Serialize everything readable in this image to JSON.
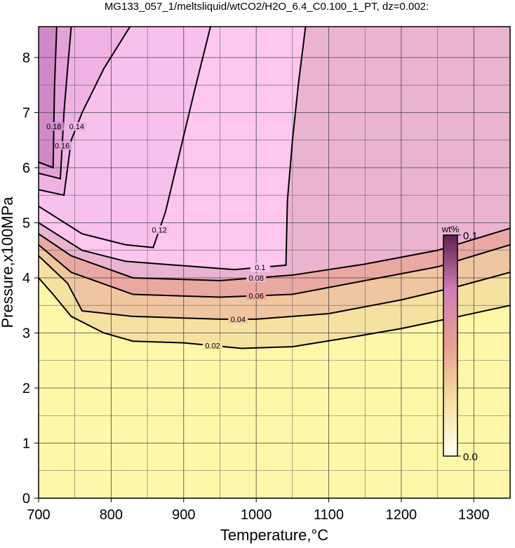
{
  "chart_data": {
    "type": "contour",
    "title": "MG133_057_1/meltsliquid/wtCO2/H2O_6.4_C0.100_1_PT, dz=0.002:",
    "x_label": "Temperature,°C",
    "y_label": "Pressure,x100MPa",
    "xlim": [
      700,
      1350
    ],
    "ylim": [
      0,
      8.56
    ],
    "xticks": [
      700,
      800,
      900,
      1000,
      1100,
      1200,
      1300
    ],
    "yticks": [
      0,
      1,
      2,
      3,
      4,
      5,
      6,
      7,
      8
    ],
    "minor_xticks": [
      750,
      850,
      950,
      1050,
      1150,
      1250
    ],
    "minor_yticks": [
      0.5,
      1.5,
      2.5,
      3.5,
      4.5,
      5.5,
      6.5,
      7.5
    ],
    "grid": true,
    "background_color": "#fdf8a8",
    "contours": [
      {
        "level": 0.02,
        "color": "#f6e2a0",
        "x": [
          700,
          720,
          745,
          790,
          830,
          900,
          980,
          1050,
          1130,
          1200,
          1280,
          1350
        ],
        "y": [
          4.0,
          3.7,
          3.3,
          3.0,
          2.85,
          2.82,
          2.72,
          2.75,
          2.92,
          3.08,
          3.3,
          3.5
        ]
      },
      {
        "level": 0.04,
        "color": "#f0c6a0",
        "x": [
          700,
          740,
          760,
          830,
          950,
          1000,
          1100,
          1200,
          1280,
          1350
        ],
        "y": [
          4.4,
          3.9,
          3.4,
          3.3,
          3.25,
          3.25,
          3.35,
          3.6,
          3.85,
          4.1
        ]
      },
      {
        "level": 0.06,
        "color": "#eaa8a2",
        "x": [
          700,
          745,
          830,
          950,
          1050,
          1150,
          1250,
          1350
        ],
        "y": [
          4.6,
          4.1,
          3.7,
          3.65,
          3.7,
          3.95,
          4.2,
          4.6
        ]
      },
      {
        "level": 0.08,
        "color": "#eab4d0",
        "x": [
          700,
          745,
          830,
          950,
          1050,
          1150,
          1250,
          1350
        ],
        "y": [
          4.8,
          4.4,
          4.0,
          3.95,
          4.05,
          4.25,
          4.5,
          4.9
        ]
      },
      {
        "level": 0.1,
        "color": "#fcc6ef",
        "x": [
          700,
          760,
          820,
          970,
          1041,
          1043,
          1050,
          1058,
          1068
        ],
        "y": [
          5.0,
          4.5,
          4.3,
          4.15,
          4.23,
          5.4,
          6.5,
          7.5,
          8.56
        ]
      },
      {
        "level": 0.12,
        "color": "#f8c0ec",
        "x": [
          700,
          760,
          820,
          858,
          875,
          895,
          915,
          937
        ],
        "y": [
          5.3,
          4.8,
          4.6,
          4.55,
          5.2,
          6.3,
          7.4,
          8.56
        ]
      },
      {
        "level": 0.14,
        "color": "#f0b2e4",
        "x": [
          700,
          735,
          745,
          760,
          790,
          826
        ],
        "y": [
          5.6,
          5.5,
          6.5,
          7.0,
          7.8,
          8.56
        ]
      },
      {
        "level": 0.16,
        "color": "#e4a2d8",
        "x": [
          700,
          730,
          735,
          740,
          745
        ],
        "y": [
          5.9,
          5.8,
          7.0,
          7.8,
          8.56
        ]
      },
      {
        "level": 0.18,
        "color": "#d08ac8",
        "x": [
          700,
          720,
          722,
          725
        ],
        "y": [
          6.1,
          6.0,
          7.5,
          8.56
        ]
      }
    ],
    "colorbar": {
      "label": "wt%",
      "lim": [
        0,
        0.1
      ],
      "ticks": [
        {
          "value": 0,
          "label": "0.0"
        },
        0.1
      ],
      "colors": [
        "#fffff0",
        "#f6e0a0",
        "#e8a090",
        "#d080b8",
        "#602050"
      ]
    }
  }
}
